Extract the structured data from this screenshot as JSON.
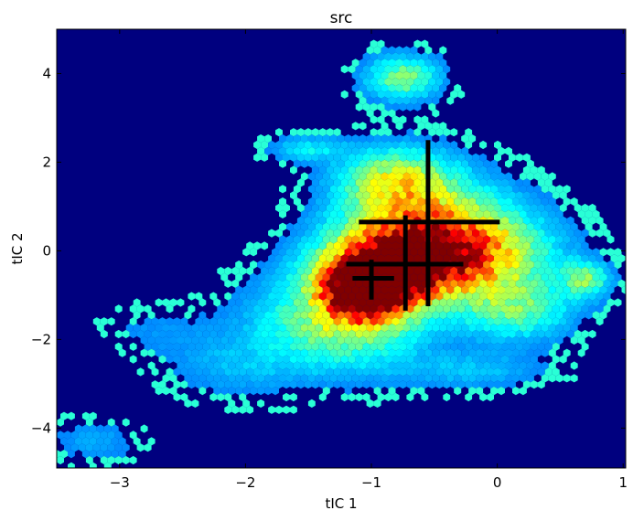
{
  "chart_data": {
    "type": "heatmap",
    "subtype": "hexbin density",
    "title": "src",
    "xlabel": "tIC 1",
    "ylabel": "tIC 2",
    "xlim": [
      -3.5,
      1.02
    ],
    "ylim": [
      -4.9,
      5.0
    ],
    "xticks": [
      -3,
      -2,
      -1,
      0,
      1
    ],
    "yticks": [
      -4,
      -2,
      0,
      2,
      4
    ],
    "xtick_labels": [
      "−3",
      "−2",
      "−1",
      "0",
      "1"
    ],
    "ytick_labels": [
      "−4",
      "−2",
      "0",
      "2",
      "4"
    ],
    "colormap": "jet",
    "background_color": "#00007f",
    "grid": false,
    "density_regions": [
      {
        "x": -1.05,
        "y": -0.9,
        "sx": 0.22,
        "sy": 0.45,
        "w": 1.0
      },
      {
        "x": -0.85,
        "y": -0.4,
        "sx": 0.35,
        "sy": 0.55,
        "w": 0.75
      },
      {
        "x": -0.55,
        "y": 0.4,
        "sx": 0.45,
        "sy": 0.8,
        "w": 0.55
      },
      {
        "x": -0.25,
        "y": -0.1,
        "sx": 0.45,
        "sy": 0.6,
        "w": 0.45
      },
      {
        "x": -1.25,
        "y": -1.6,
        "sx": 0.45,
        "sy": 0.75,
        "w": 0.38
      },
      {
        "x": -0.8,
        "y": 1.6,
        "sx": 0.3,
        "sy": 0.5,
        "w": 0.38
      },
      {
        "x": -0.75,
        "y": 3.9,
        "sx": 0.2,
        "sy": 0.35,
        "w": 0.35
      },
      {
        "x": 0.7,
        "y": -0.65,
        "sx": 0.13,
        "sy": 0.28,
        "w": 0.32
      },
      {
        "x": 0.15,
        "y": -1.3,
        "sx": 0.3,
        "sy": 0.5,
        "w": 0.3
      },
      {
        "x": -0.2,
        "y": -2.7,
        "sx": 0.4,
        "sy": 0.3,
        "w": 0.12
      },
      {
        "x": -2.1,
        "y": -2.6,
        "sx": 0.35,
        "sy": 0.5,
        "w": 0.1
      },
      {
        "x": -2.7,
        "y": -1.8,
        "sx": 0.3,
        "sy": 0.4,
        "w": 0.06
      },
      {
        "x": -3.2,
        "y": -4.3,
        "sx": 0.25,
        "sy": 0.35,
        "w": 0.09
      },
      {
        "x": -1.5,
        "y": 2.3,
        "sx": 0.2,
        "sy": 0.2,
        "w": 0.18
      }
    ],
    "crosshairs": [
      {
        "x": -0.55,
        "y": 0.65,
        "x_extent": [
          -1.1,
          0.02
        ],
        "y_extent": [
          -1.25,
          2.5
        ]
      },
      {
        "x": -0.73,
        "y": -0.3,
        "x_extent": [
          -1.2,
          -0.27
        ],
        "y_extent": [
          -1.35,
          0.8
        ]
      },
      {
        "x": -1.0,
        "y": -0.62,
        "x_extent": [
          -1.15,
          -0.82
        ],
        "y_extent": [
          -1.1,
          -0.2
        ]
      }
    ]
  }
}
